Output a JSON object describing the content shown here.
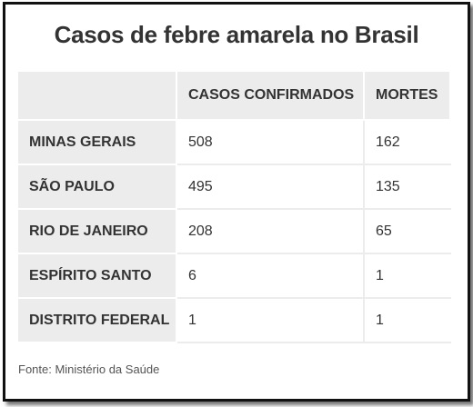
{
  "title": "Casos de febre amarela no Brasil",
  "source": "Fonte: Ministério da Saúde",
  "chart_data": {
    "type": "table",
    "title": "Casos de febre amarela no Brasil",
    "columns": [
      "",
      "CASOS CONFIRMADOS",
      "MORTES"
    ],
    "rows": [
      {
        "state": "MINAS GERAIS",
        "cases": "508",
        "deaths": "162"
      },
      {
        "state": "SÃO PAULO",
        "cases": "495",
        "deaths": "135"
      },
      {
        "state": "RIO DE JANEIRO",
        "cases": "208",
        "deaths": "65"
      },
      {
        "state": "ESPÍRITO SANTO",
        "cases": "6",
        "deaths": "1"
      },
      {
        "state": "DISTRITO FEDERAL",
        "cases": "1",
        "deaths": "1"
      }
    ]
  },
  "colors": {
    "header_background": "#ececec",
    "text": "#333333",
    "frame_border": "#111111"
  }
}
